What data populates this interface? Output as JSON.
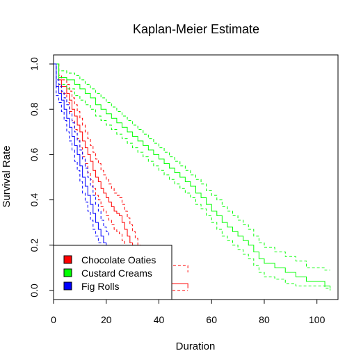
{
  "chart_data": {
    "type": "line",
    "title": "Kaplan-Meier Estimate",
    "xlabel": "Duration",
    "ylabel": "Survival Rate",
    "xlim": [
      0,
      108
    ],
    "ylim": [
      -0.04,
      1.04
    ],
    "x_ticks": [
      0,
      20,
      40,
      60,
      80,
      100
    ],
    "y_ticks": [
      0.0,
      0.2,
      0.4,
      0.6,
      0.8,
      1.0
    ],
    "x_tick_labels": [
      "0",
      "20",
      "40",
      "60",
      "80",
      "100"
    ],
    "y_tick_labels": [
      "0.0",
      "0.2",
      "0.4",
      "0.6",
      "0.8",
      "1.0"
    ],
    "grid": false,
    "legend_position": "bottom-left",
    "series": [
      {
        "name": "Chocolate Oaties",
        "color": "#ff0000",
        "x": [
          0,
          2,
          3,
          5,
          6,
          7,
          8,
          9,
          10,
          11,
          12,
          13,
          14,
          15,
          16,
          17,
          18,
          19,
          20,
          21,
          22,
          23,
          24,
          25,
          26,
          27,
          28,
          29,
          30,
          31,
          32,
          33,
          34,
          35,
          51
        ],
        "y": [
          1.0,
          0.93,
          0.9,
          0.87,
          0.84,
          0.8,
          0.77,
          0.73,
          0.7,
          0.66,
          0.63,
          0.6,
          0.57,
          0.53,
          0.5,
          0.48,
          0.45,
          0.43,
          0.41,
          0.39,
          0.37,
          0.35,
          0.34,
          0.33,
          0.3,
          0.27,
          0.24,
          0.21,
          0.18,
          0.15,
          0.12,
          0.09,
          0.06,
          0.03,
          0.01
        ],
        "upper": [
          1.0,
          0.95,
          0.93,
          0.91,
          0.88,
          0.85,
          0.82,
          0.79,
          0.76,
          0.73,
          0.7,
          0.67,
          0.64,
          0.61,
          0.58,
          0.56,
          0.53,
          0.51,
          0.49,
          0.47,
          0.45,
          0.43,
          0.42,
          0.41,
          0.38,
          0.35,
          0.32,
          0.29,
          0.26,
          0.23,
          0.2,
          0.17,
          0.14,
          0.11,
          0.08
        ],
        "lower": [
          1.0,
          0.9,
          0.87,
          0.83,
          0.79,
          0.75,
          0.71,
          0.67,
          0.63,
          0.59,
          0.56,
          0.52,
          0.49,
          0.45,
          0.42,
          0.4,
          0.37,
          0.35,
          0.33,
          0.31,
          0.29,
          0.27,
          0.26,
          0.25,
          0.22,
          0.19,
          0.16,
          0.13,
          0.1,
          0.07,
          0.04,
          0.02,
          0.01,
          0.0,
          0.0
        ]
      },
      {
        "name": "Custard Creams",
        "color": "#00ff00",
        "x": [
          0,
          2,
          5,
          8,
          10,
          12,
          14,
          16,
          18,
          20,
          22,
          24,
          26,
          28,
          30,
          32,
          34,
          36,
          38,
          40,
          42,
          44,
          46,
          48,
          50,
          52,
          54,
          56,
          58,
          60,
          62,
          64,
          66,
          68,
          70,
          72,
          74,
          76,
          78,
          80,
          84,
          88,
          92,
          96,
          100,
          103,
          105
        ],
        "y": [
          1.0,
          0.94,
          0.93,
          0.91,
          0.89,
          0.87,
          0.85,
          0.82,
          0.8,
          0.78,
          0.76,
          0.74,
          0.72,
          0.7,
          0.68,
          0.66,
          0.64,
          0.62,
          0.6,
          0.58,
          0.56,
          0.54,
          0.52,
          0.5,
          0.48,
          0.46,
          0.43,
          0.41,
          0.38,
          0.35,
          0.33,
          0.3,
          0.28,
          0.26,
          0.24,
          0.22,
          0.2,
          0.17,
          0.14,
          0.12,
          0.1,
          0.08,
          0.06,
          0.04,
          0.04,
          0.02,
          0.01
        ],
        "upper": [
          1.0,
          0.97,
          0.96,
          0.95,
          0.93,
          0.91,
          0.89,
          0.87,
          0.85,
          0.83,
          0.81,
          0.79,
          0.77,
          0.75,
          0.73,
          0.71,
          0.69,
          0.67,
          0.65,
          0.63,
          0.61,
          0.59,
          0.57,
          0.55,
          0.53,
          0.51,
          0.49,
          0.47,
          0.44,
          0.42,
          0.4,
          0.37,
          0.35,
          0.33,
          0.31,
          0.29,
          0.27,
          0.24,
          0.21,
          0.19,
          0.17,
          0.15,
          0.13,
          0.1,
          0.1,
          0.09,
          0.09
        ],
        "lower": [
          1.0,
          0.91,
          0.89,
          0.86,
          0.84,
          0.82,
          0.8,
          0.77,
          0.75,
          0.73,
          0.71,
          0.69,
          0.67,
          0.65,
          0.63,
          0.61,
          0.59,
          0.57,
          0.55,
          0.53,
          0.51,
          0.49,
          0.47,
          0.45,
          0.43,
          0.41,
          0.38,
          0.36,
          0.33,
          0.3,
          0.27,
          0.24,
          0.22,
          0.2,
          0.18,
          0.16,
          0.14,
          0.11,
          0.08,
          0.06,
          0.05,
          0.03,
          0.02,
          0.02,
          0.02,
          0.01,
          0.0
        ]
      },
      {
        "name": "Fig Rolls",
        "color": "#0000ff",
        "x": [
          0,
          1,
          2,
          3,
          4,
          5,
          6,
          7,
          8,
          9,
          10,
          11,
          12,
          13,
          14,
          15,
          16,
          17,
          18,
          19,
          20,
          21
        ],
        "y": [
          1.0,
          0.9,
          0.87,
          0.84,
          0.8,
          0.76,
          0.72,
          0.68,
          0.64,
          0.6,
          0.55,
          0.5,
          0.46,
          0.42,
          0.38,
          0.34,
          0.3,
          0.27,
          0.24,
          0.21,
          0.19,
          0.17
        ],
        "upper": [
          1.0,
          0.93,
          0.91,
          0.88,
          0.85,
          0.82,
          0.78,
          0.74,
          0.7,
          0.66,
          0.62,
          0.58,
          0.54,
          0.5,
          0.46,
          0.42,
          0.38,
          0.35,
          0.31,
          0.28,
          0.26,
          0.24
        ],
        "lower": [
          1.0,
          0.86,
          0.83,
          0.79,
          0.75,
          0.7,
          0.66,
          0.62,
          0.57,
          0.53,
          0.48,
          0.43,
          0.39,
          0.35,
          0.31,
          0.27,
          0.24,
          0.21,
          0.18,
          0.16,
          0.14,
          0.12
        ]
      }
    ]
  }
}
